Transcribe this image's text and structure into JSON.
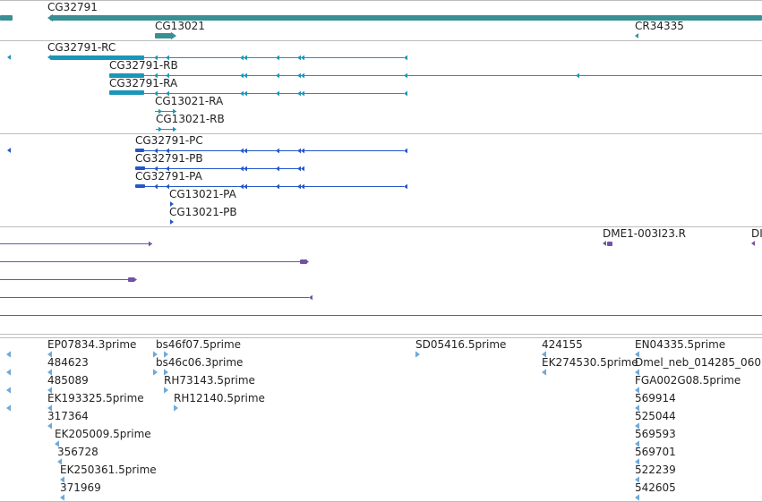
{
  "colors": {
    "gene": "#3a8f95",
    "flybase_transcript": "#1a96b8",
    "genbank_transcript": "#2457c9",
    "clone": "#7352a4",
    "est": "#6ea9d9",
    "separator": "#bdbdbd"
  },
  "tracks": [
    {
      "name": "gene-track",
      "color": "gene",
      "features": [
        {
          "id": "left-gene-edge",
          "label": "",
          "icon": "gene-block"
        },
        {
          "id": "CG32791",
          "label": "CG32791",
          "icon": "gene-block-left-arrow"
        },
        {
          "id": "CG13021",
          "label": "CG13021",
          "icon": "gene-block-right-arrow"
        },
        {
          "id": "CR34335",
          "label": "CR34335",
          "icon": "left-arrow"
        }
      ]
    },
    {
      "name": "flybase-transcripts-track",
      "color": "flybase_transcript",
      "features": [
        {
          "id": "left-edge",
          "label": "",
          "icon": "left-arrow"
        },
        {
          "id": "CG32791-RC",
          "label": "CG32791-RC",
          "icon": "transcript-left"
        },
        {
          "id": "CG32791-RB",
          "label": "CG32791-RB",
          "icon": "transcript-left"
        },
        {
          "id": "CG32791-RA",
          "label": "CG32791-RA",
          "icon": "transcript-left"
        },
        {
          "id": "CG13021-RA",
          "label": "CG13021-RA",
          "icon": "transcript-right"
        },
        {
          "id": "CG13021-RB",
          "label": "CG13021-RB",
          "icon": "transcript-right"
        }
      ]
    },
    {
      "name": "genbank-transcripts-track",
      "color": "genbank_transcript",
      "features": [
        {
          "id": "left-edge",
          "label": "",
          "icon": "left-arrow"
        },
        {
          "id": "CG32791-PC",
          "label": "CG32791-PC",
          "icon": "transcript-left"
        },
        {
          "id": "CG32791-PB",
          "label": "CG32791-PB",
          "icon": "transcript-left"
        },
        {
          "id": "CG32791-PA",
          "label": "CG32791-PA",
          "icon": "transcript-left"
        },
        {
          "id": "CG13021-PA",
          "label": "CG13021-PA",
          "icon": "right-arrow"
        },
        {
          "id": "CG13021-PB",
          "label": "CG13021-PB",
          "icon": "right-arrow"
        }
      ]
    },
    {
      "name": "clone-track",
      "color": "clone",
      "features": [
        {
          "id": "DME1-003I23.R",
          "label": "DME1-003I23.R",
          "icon": "left-arrow"
        },
        {
          "id": "right-clone",
          "label": "DI",
          "icon": "left-arrow"
        },
        {
          "id": "clone-line-1",
          "label": "",
          "icon": "line-right-arrow"
        },
        {
          "id": "clone-line-2",
          "label": "",
          "icon": "line-right-arrow"
        },
        {
          "id": "clone-line-3",
          "label": "",
          "icon": "line-right-arrow"
        },
        {
          "id": "clone-line-4",
          "label": "",
          "icon": "line-left-arrow"
        },
        {
          "id": "clone-line-5",
          "label": "",
          "icon": "line"
        }
      ]
    },
    {
      "name": "est-track",
      "color": "est",
      "features": [
        {
          "id": "EP07834.3prime",
          "label": "EP07834.3prime",
          "icon": "left-arrow"
        },
        {
          "id": "484623",
          "label": "484623",
          "icon": "left-arrow"
        },
        {
          "id": "485089",
          "label": "485089",
          "icon": "left-arrow"
        },
        {
          "id": "EK193325.5prime",
          "label": "EK193325.5prime",
          "icon": "left-arrow"
        },
        {
          "id": "317364",
          "label": "317364",
          "icon": "left-arrow"
        },
        {
          "id": "EK205009.5prime",
          "label": "EK205009.5prime",
          "icon": "left-arrow"
        },
        {
          "id": "356728",
          "label": "356728",
          "icon": "left-arrow"
        },
        {
          "id": "EK250361.5prime",
          "label": "EK250361.5prime",
          "icon": "left-arrow"
        },
        {
          "id": "371969",
          "label": "371969",
          "icon": "left-arrow"
        },
        {
          "id": "bs46f07.5prime",
          "label": "bs46f07.5prime",
          "icon": "right-arrow"
        },
        {
          "id": "bs46c06.3prime",
          "label": "bs46c06.3prime",
          "icon": "right-arrow"
        },
        {
          "id": "RH73143.5prime",
          "label": "RH73143.5prime",
          "icon": "right-arrow"
        },
        {
          "id": "RH12140.5prime",
          "label": "RH12140.5prime",
          "icon": "right-arrow"
        },
        {
          "id": "SD05416.5prime",
          "label": "SD05416.5prime",
          "icon": "right-arrow"
        },
        {
          "id": "424155",
          "label": "424155",
          "icon": "left-arrow"
        },
        {
          "id": "EK274530.5prime",
          "label": "EK274530.5prime",
          "icon": "left-arrow"
        },
        {
          "id": "EN04335.5prime",
          "label": "EN04335.5prime",
          "icon": "left-arrow"
        },
        {
          "id": "Dmel_neb_014285_060",
          "label": "Dmel_neb_014285_060",
          "icon": "left-arrow"
        },
        {
          "id": "FGA002G08.5prime",
          "label": "FGA002G08.5prime",
          "icon": "left-arrow"
        },
        {
          "id": "569914",
          "label": "569914",
          "icon": "left-arrow"
        },
        {
          "id": "525044",
          "label": "525044",
          "icon": "left-arrow"
        },
        {
          "id": "569593",
          "label": "569593",
          "icon": "left-arrow"
        },
        {
          "id": "569701",
          "label": "569701",
          "icon": "left-arrow"
        },
        {
          "id": "522239",
          "label": "522239",
          "icon": "left-arrow"
        },
        {
          "id": "542605",
          "label": "542605",
          "icon": "left-arrow"
        },
        {
          "id": "est-left-1",
          "label": "",
          "icon": "left-arrow"
        },
        {
          "id": "est-left-2",
          "label": "",
          "icon": "left-arrow"
        },
        {
          "id": "est-left-3",
          "label": "",
          "icon": "left-arrow"
        },
        {
          "id": "est-left-4",
          "label": "",
          "icon": "left-arrow"
        }
      ]
    }
  ]
}
